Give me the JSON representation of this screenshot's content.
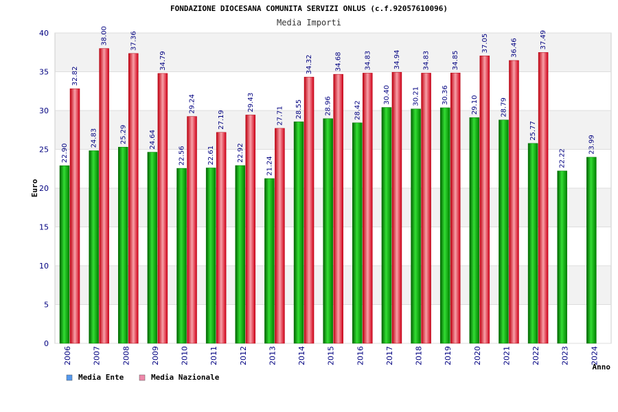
{
  "chart_data": {
    "type": "bar",
    "title": "FONDAZIONE DIOCESANA COMUNITA SERVIZI ONLUS (c.f.92057610096)",
    "subtitle": "Media Importi",
    "xlabel": "Anno",
    "ylabel": "Euro",
    "ylim": [
      0,
      40
    ],
    "yticks": [
      "0",
      "5",
      "10",
      "15",
      "20",
      "25",
      "30",
      "35",
      "40"
    ],
    "categories": [
      "2006",
      "2007",
      "2008",
      "2009",
      "2010",
      "2011",
      "2012",
      "2013",
      "2014",
      "2015",
      "2016",
      "2017",
      "2018",
      "2019",
      "2020",
      "2021",
      "2022",
      "2023",
      "2024"
    ],
    "series": [
      {
        "name": "Media Ente",
        "color": "#00a800",
        "values": [
          22.9,
          24.83,
          25.29,
          24.64,
          22.56,
          22.61,
          22.92,
          21.24,
          28.55,
          28.96,
          28.42,
          30.4,
          30.21,
          30.36,
          29.1,
          28.79,
          25.77,
          22.22,
          23.99
        ],
        "labels": [
          "22.90",
          "24.83",
          "25.29",
          "24.64",
          "22.56",
          "22.61",
          "22.92",
          "21.24",
          "28.55",
          "28.96",
          "28.42",
          "30.40",
          "30.21",
          "30.36",
          "29.10",
          "28.79",
          "25.77",
          "22.22",
          "23.99"
        ]
      },
      {
        "name": "Media Nazionale",
        "color": "#e0202a",
        "values": [
          32.82,
          38.0,
          37.36,
          34.79,
          29.24,
          27.19,
          29.43,
          27.71,
          34.32,
          34.68,
          34.83,
          34.94,
          34.83,
          34.85,
          37.05,
          36.46,
          37.49,
          null,
          null
        ],
        "labels": [
          "32.82",
          "38.00",
          "37.36",
          "34.79",
          "29.24",
          "27.19",
          "29.43",
          "27.71",
          "34.32",
          "34.68",
          "34.83",
          "34.94",
          "34.83",
          "34.85",
          "37.05",
          "36.46",
          "37.49",
          null,
          null
        ]
      }
    ],
    "legend": {
      "position": "bottom-left",
      "items": [
        {
          "label": "Media Ente",
          "color": "#5599ee"
        },
        {
          "label": "Media Nazionale",
          "color": "#ee88aa"
        }
      ]
    }
  }
}
